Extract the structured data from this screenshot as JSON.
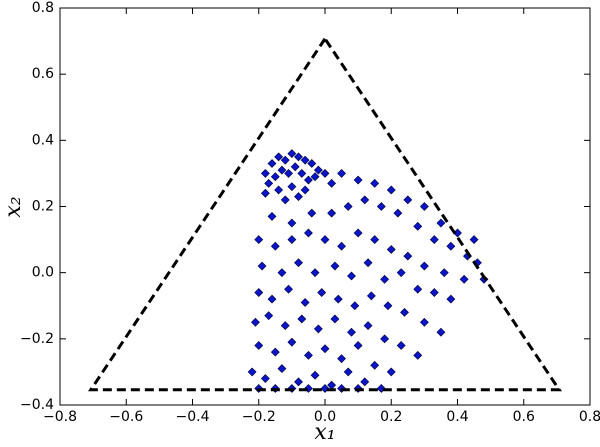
{
  "chart_data": {
    "type": "scatter",
    "xlabel": "x₁",
    "ylabel": "x₂",
    "xlim": [
      -0.8,
      0.8
    ],
    "ylim": [
      -0.4,
      0.8
    ],
    "xticks": [
      {
        "value": -0.8,
        "label": "−0.8"
      },
      {
        "value": -0.6,
        "label": "−0.6"
      },
      {
        "value": -0.4,
        "label": "−0.4"
      },
      {
        "value": -0.2,
        "label": "−0.2"
      },
      {
        "value": 0,
        "label": "0.0"
      },
      {
        "value": 0.2,
        "label": "0.2"
      },
      {
        "value": 0.4,
        "label": "0.4"
      },
      {
        "value": 0.6,
        "label": "0.6"
      },
      {
        "value": 0.8,
        "label": "0.8"
      }
    ],
    "yticks": [
      {
        "value": -0.4,
        "label": "−0.4"
      },
      {
        "value": -0.2,
        "label": "−0.2"
      },
      {
        "value": 0,
        "label": "0.0"
      },
      {
        "value": 0.2,
        "label": "0.2"
      },
      {
        "value": 0.4,
        "label": "0.4"
      },
      {
        "value": 0.6,
        "label": "0.6"
      },
      {
        "value": 0.8,
        "label": "0.8"
      }
    ],
    "lines": [
      {
        "color": "#000000",
        "dashed": true,
        "x": [
          0,
          -0.707,
          0.707,
          0
        ],
        "y": [
          0.707,
          -0.354,
          -0.354,
          0.707
        ]
      }
    ],
    "series": [
      {
        "color": "#0a14c8",
        "x": [
          -0.18,
          -0.16,
          -0.14,
          -0.12,
          -0.1,
          -0.08,
          -0.06,
          -0.04,
          -0.02,
          -0.17,
          -0.15,
          -0.13,
          -0.11,
          -0.09,
          -0.07,
          -0.05,
          -0.03,
          -0.18,
          -0.14,
          -0.1,
          -0.06,
          -0.12,
          -0.08,
          0.0,
          0.02,
          0.05,
          0.1,
          0.15,
          0.2,
          0.25,
          0.3,
          0.35,
          0.4,
          0.45,
          0.48,
          0.43,
          0.38,
          0.33,
          0.28,
          0.22,
          0.17,
          0.12,
          0.07,
          0.02,
          -0.04,
          -0.1,
          -0.16,
          -0.2,
          -0.15,
          -0.1,
          -0.05,
          0.0,
          0.05,
          0.1,
          0.15,
          0.2,
          0.25,
          0.3,
          0.36,
          0.42,
          0.46,
          -0.19,
          -0.13,
          -0.08,
          -0.03,
          0.03,
          0.08,
          0.13,
          0.18,
          0.23,
          0.28,
          0.33,
          0.38,
          -0.2,
          -0.16,
          -0.11,
          -0.06,
          -0.01,
          0.04,
          0.09,
          0.14,
          0.19,
          0.24,
          0.3,
          0.35,
          -0.21,
          -0.17,
          -0.12,
          -0.07,
          -0.02,
          0.03,
          0.08,
          0.13,
          0.18,
          0.23,
          0.28,
          -0.2,
          -0.15,
          -0.1,
          -0.05,
          0.0,
          0.05,
          0.1,
          0.15,
          0.2,
          -0.22,
          -0.18,
          -0.13,
          -0.08,
          -0.03,
          0.02,
          0.07,
          0.12,
          0.17,
          -0.2,
          -0.15,
          -0.1,
          -0.05,
          0.0,
          0.05,
          0.1
        ],
        "y": [
          0.3,
          0.33,
          0.35,
          0.34,
          0.36,
          0.35,
          0.34,
          0.33,
          0.31,
          0.27,
          0.29,
          0.31,
          0.3,
          0.32,
          0.3,
          0.28,
          0.29,
          0.24,
          0.25,
          0.26,
          0.25,
          0.22,
          0.23,
          0.3,
          0.27,
          0.3,
          0.28,
          0.27,
          0.25,
          0.22,
          0.2,
          0.15,
          0.12,
          0.1,
          -0.02,
          0.05,
          0.08,
          0.1,
          0.14,
          0.18,
          0.2,
          0.22,
          0.2,
          0.18,
          0.18,
          0.15,
          0.17,
          0.1,
          0.08,
          0.1,
          0.12,
          0.1,
          0.08,
          0.12,
          0.1,
          0.07,
          0.05,
          0.02,
          0.0,
          -0.02,
          0.03,
          0.02,
          0.0,
          0.03,
          0.0,
          0.02,
          -0.01,
          0.03,
          -0.02,
          0.0,
          -0.05,
          -0.06,
          -0.08,
          -0.06,
          -0.08,
          -0.05,
          -0.09,
          -0.06,
          -0.08,
          -0.1,
          -0.07,
          -0.1,
          -0.12,
          -0.15,
          -0.18,
          -0.15,
          -0.13,
          -0.16,
          -0.14,
          -0.17,
          -0.14,
          -0.18,
          -0.16,
          -0.2,
          -0.22,
          -0.25,
          -0.22,
          -0.24,
          -0.21,
          -0.25,
          -0.23,
          -0.26,
          -0.22,
          -0.28,
          -0.3,
          -0.3,
          -0.32,
          -0.29,
          -0.33,
          -0.31,
          -0.34,
          -0.3,
          -0.33,
          -0.35,
          -0.35,
          -0.35,
          -0.35,
          -0.35,
          -0.35,
          -0.35,
          -0.35
        ]
      }
    ]
  }
}
